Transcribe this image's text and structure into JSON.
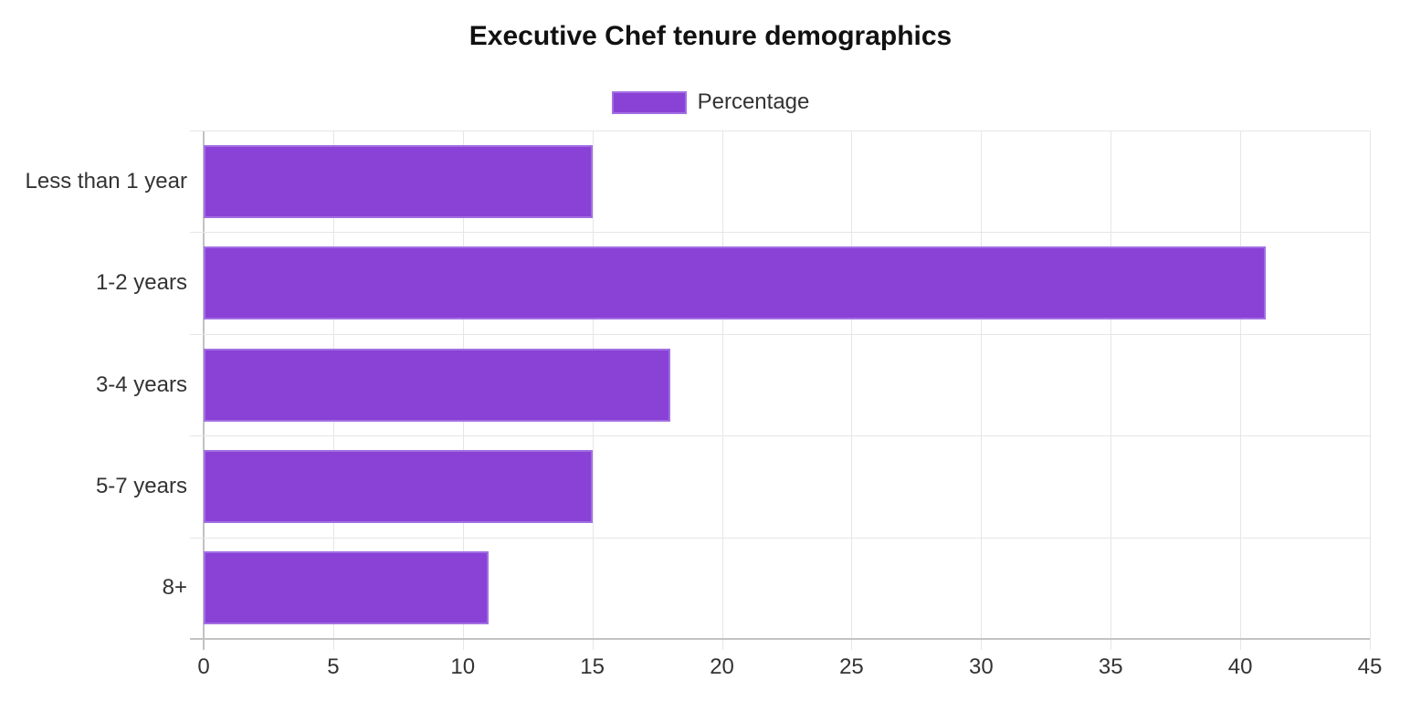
{
  "chart_data": {
    "type": "bar",
    "orientation": "horizontal",
    "title": "Executive Chef tenure demographics",
    "legend": {
      "label": "Percentage",
      "position": "top"
    },
    "categories": [
      "Less than 1 year",
      "1-2 years",
      "3-4 years",
      "5-7 years",
      "8+"
    ],
    "values": [
      15,
      41,
      18,
      15,
      11
    ],
    "xlabel": "",
    "ylabel": "",
    "xlim": [
      0,
      45
    ],
    "xticks": [
      0,
      5,
      10,
      15,
      20,
      25,
      30,
      35,
      40,
      45
    ],
    "grid": true,
    "colors": {
      "bar_fill": "#8941D6",
      "bar_border": "#A26FE3",
      "grid_line": "#E6E6E6",
      "axis_line": "#C2C2C2",
      "title_text": "#111111",
      "label_text": "#333333",
      "background": "#FFFFFF"
    }
  }
}
